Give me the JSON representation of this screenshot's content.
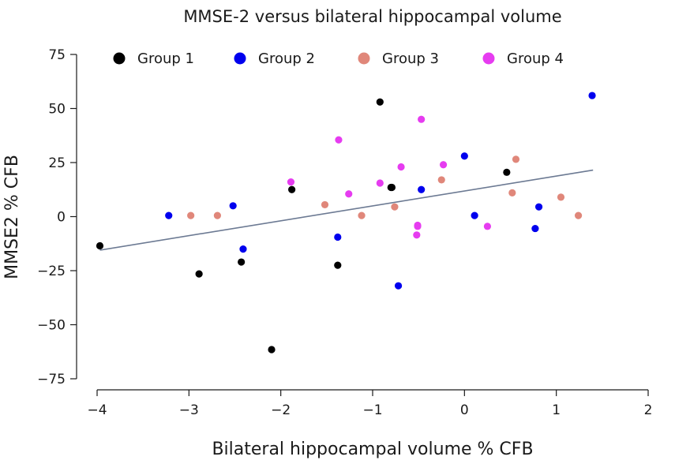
{
  "chart_data": {
    "type": "scatter",
    "title": "MMSE-2 versus bilateral hippocampal volume",
    "xlabel": "Bilateral hippocampal volume % CFB",
    "ylabel": "MMSE2 % CFB",
    "xlim": [
      -4,
      2
    ],
    "ylim": [
      -75,
      75
    ],
    "x_ticks": [
      -4,
      -3,
      -2,
      -1,
      0,
      1,
      2
    ],
    "y_ticks": [
      75,
      50,
      25,
      0,
      -25,
      -50,
      -75
    ],
    "x_tick_labels": [
      "−4",
      "−3",
      "−2",
      "−1",
      "0",
      "1",
      "2"
    ],
    "y_tick_labels": [
      "75",
      "50",
      "25",
      "0",
      "−25",
      "−50",
      "−75"
    ],
    "legend_position": "top",
    "trendline": {
      "x": [
        -3.97,
        1.4
      ],
      "y": [
        -15.5,
        21.5
      ],
      "color": "#6c7a93"
    },
    "series": [
      {
        "name": "Group 1",
        "color": "#000000",
        "points": [
          [
            -3.97,
            -13.5
          ],
          [
            -2.89,
            -26.5
          ],
          [
            -2.43,
            -21
          ],
          [
            -2.1,
            -61.5
          ],
          [
            -1.88,
            12.5
          ],
          [
            -1.38,
            -22.5
          ],
          [
            -0.92,
            53
          ],
          [
            -0.8,
            13.5
          ],
          [
            -0.79,
            13.5
          ],
          [
            0.46,
            20.5
          ]
        ]
      },
      {
        "name": "Group 2",
        "color": "#0000ee",
        "points": [
          [
            -3.22,
            0.5
          ],
          [
            -2.52,
            5
          ],
          [
            -2.41,
            -15
          ],
          [
            -1.38,
            -9.5
          ],
          [
            -0.72,
            -32
          ],
          [
            -0.47,
            12.5
          ],
          [
            0.0,
            28
          ],
          [
            0.11,
            0.5
          ],
          [
            0.77,
            -5.5
          ],
          [
            0.81,
            4.5
          ],
          [
            1.39,
            56
          ]
        ]
      },
      {
        "name": "Group 3",
        "color": "#e0877a",
        "points": [
          [
            -2.98,
            0.5
          ],
          [
            -2.69,
            0.5
          ],
          [
            -1.52,
            5.5
          ],
          [
            -1.12,
            0.5
          ],
          [
            -0.76,
            4.5
          ],
          [
            -0.25,
            17
          ],
          [
            0.52,
            11
          ],
          [
            0.56,
            26.5
          ],
          [
            1.05,
            9
          ],
          [
            1.24,
            0.5
          ]
        ]
      },
      {
        "name": "Group 4",
        "color": "#e63cf0",
        "points": [
          [
            -1.89,
            16
          ],
          [
            -1.37,
            35.5
          ],
          [
            -1.26,
            10.5
          ],
          [
            -0.92,
            15.5
          ],
          [
            -0.69,
            23
          ],
          [
            -0.52,
            -8.5
          ],
          [
            -0.51,
            -4
          ],
          [
            -0.51,
            -4.5
          ],
          [
            -0.47,
            45
          ],
          [
            -0.23,
            24
          ],
          [
            0.25,
            -4.5
          ]
        ]
      }
    ]
  }
}
